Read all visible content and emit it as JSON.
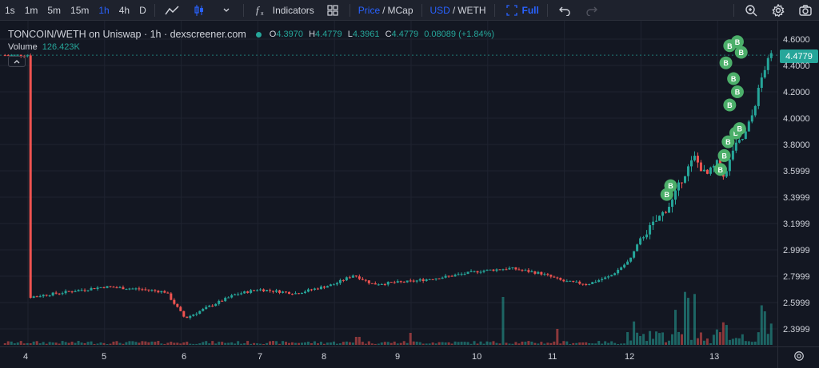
{
  "toolbar": {
    "intervals": [
      "1s",
      "1m",
      "5m",
      "15m",
      "1h",
      "4h",
      "D"
    ],
    "active_interval": "1h",
    "indicators_label": "Indicators",
    "price_label": "Price",
    "mcap_label": "MCap",
    "usd_label": "USD",
    "weth_label": "WETH",
    "full_label": "Full",
    "separator": "/"
  },
  "legend": {
    "title": "TONCOIN/WETH on Uniswap · 1h · dexscreener.com",
    "o_label": "O",
    "o_value": "4.3970",
    "h_label": "H",
    "h_value": "4.4779",
    "l_label": "L",
    "l_value": "4.3961",
    "c_label": "C",
    "c_value": "4.4779",
    "change": "0.08089 (+1.84%)",
    "volume_label": "Volume",
    "volume_value": "126.423K"
  },
  "price_axis": {
    "labels": [
      "4.6000",
      "4.4000",
      "4.2000",
      "4.0000",
      "3.8000",
      "3.5999",
      "3.3999",
      "3.1999",
      "2.9999",
      "2.7999",
      "2.5999",
      "2.3999"
    ],
    "last_price": "4.4779"
  },
  "time_axis": {
    "labels": [
      "4",
      "5",
      "6",
      "7",
      "8",
      "9",
      "10",
      "11",
      "12",
      "13"
    ]
  },
  "colors": {
    "up": "#26a69a",
    "down": "#ef5350",
    "marker": "#4caf6a",
    "background": "#131722"
  },
  "icons": {
    "line_chart": "line-chart-icon",
    "candles": "candlestick-icon",
    "indicators": "fx-icon",
    "layouts": "grid-icon",
    "fullscreen": "fullscreen-icon",
    "undo": "undo-icon",
    "redo": "redo-icon",
    "search": "magnifier-icon",
    "settings": "gear-icon",
    "snapshot": "camera-icon"
  },
  "chart_data": {
    "type": "candlestick",
    "title": "",
    "x_axis_ticks": [
      "4",
      "5",
      "6",
      "7",
      "8",
      "9",
      "10",
      "11",
      "12",
      "13"
    ],
    "y_axis_ticks": [
      2.3999,
      2.5999,
      2.7999,
      2.9999,
      3.1999,
      3.3999,
      3.5999,
      3.8,
      4.0,
      4.2,
      4.4,
      4.6
    ],
    "ylim": [
      2.3,
      4.7
    ],
    "last_price": 4.4779,
    "grid": true,
    "marker_label": "B",
    "price_path": [
      [
        4.0,
        2.64
      ],
      [
        4.5,
        2.68
      ],
      [
        5.0,
        2.72
      ],
      [
        5.5,
        2.7
      ],
      [
        5.8,
        2.68
      ],
      [
        6.05,
        2.48
      ],
      [
        6.4,
        2.58
      ],
      [
        6.7,
        2.66
      ],
      [
        7.0,
        2.7
      ],
      [
        7.5,
        2.67
      ],
      [
        8.0,
        2.74
      ],
      [
        8.25,
        2.81
      ],
      [
        8.5,
        2.74
      ],
      [
        9.0,
        2.76
      ],
      [
        9.5,
        2.8
      ],
      [
        9.9,
        2.84
      ],
      [
        10.3,
        2.86
      ],
      [
        10.7,
        2.82
      ],
      [
        11.0,
        2.76
      ],
      [
        11.3,
        2.74
      ],
      [
        11.6,
        2.8
      ],
      [
        11.85,
        2.92
      ],
      [
        12.0,
        3.09
      ],
      [
        12.2,
        3.22
      ],
      [
        12.4,
        3.36
      ],
      [
        12.55,
        3.56
      ],
      [
        12.7,
        3.7
      ],
      [
        12.85,
        3.56
      ],
      [
        13.0,
        3.66
      ],
      [
        13.1,
        3.55
      ],
      [
        13.2,
        3.76
      ],
      [
        13.35,
        3.86
      ],
      [
        13.45,
        4.02
      ],
      [
        13.6,
        4.36
      ],
      [
        13.7,
        4.4779
      ]
    ],
    "volume_hints": [
      [
        8.3,
        0.1
      ],
      [
        9.0,
        0.15
      ],
      [
        10.2,
        0.6
      ],
      [
        10.9,
        0.2
      ],
      [
        11.9,
        0.15
      ],
      [
        12.45,
        0.35
      ],
      [
        12.6,
        0.55
      ],
      [
        12.7,
        0.55
      ],
      [
        13.1,
        0.15
      ],
      [
        13.6,
        0.35
      ],
      [
        13.7,
        0.25
      ]
    ],
    "buy_markers_x": [
      12.4,
      12.45,
      13.1,
      13.15,
      13.2,
      13.3,
      13.35
    ]
  }
}
